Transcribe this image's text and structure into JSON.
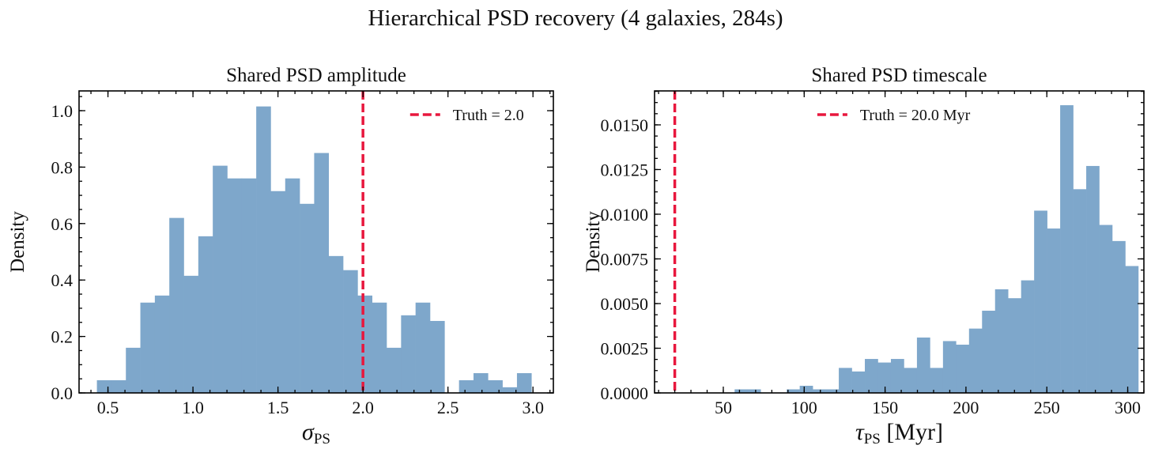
{
  "figure": {
    "suptitle": "Hierarchical PSD recovery (4 galaxies, 284s)"
  },
  "chart_data": [
    {
      "type": "histogram",
      "title": "Shared PSD amplitude",
      "xlabel_main": "σ",
      "xlabel_sub": "PS",
      "xlabel_suffix": "",
      "ylabel": "Density",
      "xlim": [
        0.33,
        3.12
      ],
      "ylim": [
        0,
        1.07
      ],
      "xticks": [
        0.5,
        1.0,
        1.5,
        2.0,
        2.5,
        3.0
      ],
      "xtick_labels": [
        "0.5",
        "1.0",
        "1.5",
        "2.0",
        "2.5",
        "3.0"
      ],
      "yticks": [
        0.0,
        0.2,
        0.4,
        0.6,
        0.8,
        1.0
      ],
      "ytick_labels": [
        "0.0",
        "0.2",
        "0.4",
        "0.6",
        "0.8",
        "1.0"
      ],
      "bin_start": 0.435,
      "bin_width": 0.0852,
      "values": [
        0.045,
        0.045,
        0.16,
        0.32,
        0.345,
        0.62,
        0.415,
        0.555,
        0.805,
        0.76,
        0.76,
        1.015,
        0.715,
        0.76,
        0.67,
        0.85,
        0.485,
        0.435,
        0.345,
        0.32,
        0.16,
        0.275,
        0.32,
        0.255,
        0.0,
        0.045,
        0.07,
        0.045,
        0.02,
        0.07
      ],
      "truth": 2.0,
      "legend_label": "Truth = 2.0",
      "legend_position": "upper-right",
      "colors": {
        "bars": "#7ea7cb",
        "truth": "#e8173d"
      }
    },
    {
      "type": "histogram",
      "title": "Shared PSD timescale",
      "xlabel_main": "τ",
      "xlabel_sub": "PS",
      "xlabel_suffix": " [Myr]",
      "ylabel": "Density",
      "xlim": [
        7.5,
        310
      ],
      "ylim": [
        0,
        0.0169
      ],
      "xticks": [
        50,
        100,
        150,
        200,
        250,
        300
      ],
      "xtick_labels": [
        "50",
        "100",
        "150",
        "200",
        "250",
        "300"
      ],
      "yticks": [
        0.0,
        0.0025,
        0.005,
        0.0075,
        0.01,
        0.0125,
        0.015
      ],
      "ytick_labels": [
        "0.0000",
        "0.0025",
        "0.0050",
        "0.0075",
        "0.0100",
        "0.0125",
        "0.0150"
      ],
      "bin_start": 57.0,
      "bin_width": 8.05,
      "values": [
        0.0002,
        0.0002,
        0.0,
        0.0,
        0.0002,
        0.0004,
        0.0002,
        0.0002,
        0.0014,
        0.0012,
        0.0019,
        0.0017,
        0.0019,
        0.0014,
        0.0031,
        0.0014,
        0.0029,
        0.0027,
        0.0036,
        0.0046,
        0.0058,
        0.0053,
        0.0063,
        0.0102,
        0.0092,
        0.0161,
        0.0114,
        0.0127,
        0.0094,
        0.0085,
        0.0071
      ],
      "truth": 20.0,
      "legend_label": "Truth = 20.0 Myr",
      "legend_position": "upper-center",
      "colors": {
        "bars": "#7ea7cb",
        "truth": "#e8173d"
      }
    }
  ]
}
